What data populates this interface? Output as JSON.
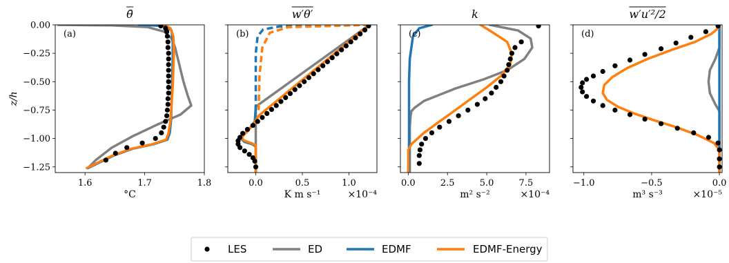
{
  "chart_data": [
    {
      "type": "line",
      "panel": "(a)",
      "title": "θ̄",
      "title_overline": true,
      "xlabel": "°C",
      "xlim": [
        1.55,
        1.8
      ],
      "ylim": [
        -1.3,
        0.0
      ],
      "xticks": [
        1.6,
        1.7,
        1.8
      ],
      "xticklabels": [
        "1.6",
        "1.7",
        "1.8"
      ],
      "yticks": [
        0.0,
        -0.25,
        -0.5,
        -0.75,
        -1.0,
        -1.25
      ],
      "yticklabels": [
        "0.00",
        "−0.25",
        "−0.50",
        "−0.75",
        "−1.00",
        "−1.25"
      ],
      "ylabel": "z/h",
      "x_multiplier": "",
      "series": [
        {
          "name": "LES",
          "style": "dots",
          "x": [
            1.727,
            1.735,
            1.737,
            1.738,
            1.739,
            1.739,
            1.74,
            1.74,
            1.74,
            1.74,
            1.74,
            1.74,
            1.74,
            1.74,
            1.739,
            1.739,
            1.738,
            1.737,
            1.735,
            1.732,
            1.728,
            1.718,
            1.696,
            1.67,
            1.651,
            1.635
          ],
          "z": [
            -0.01,
            -0.03,
            -0.06,
            -0.1,
            -0.15,
            -0.2,
            -0.25,
            -0.3,
            -0.35,
            -0.4,
            -0.45,
            -0.5,
            -0.55,
            -0.6,
            -0.65,
            -0.7,
            -0.75,
            -0.8,
            -0.85,
            -0.9,
            -0.95,
            -1.0,
            -1.04,
            -1.08,
            -1.13,
            -1.19
          ]
        },
        {
          "name": "ED",
          "style": "line",
          "x": [
            1.555,
            1.645,
            1.705,
            1.733,
            1.745,
            1.751,
            1.758,
            1.765,
            1.772,
            1.778,
            1.76,
            1.72,
            1.68,
            1.645,
            1.618,
            1.605
          ],
          "z": [
            0.0,
            -0.005,
            -0.02,
            -0.06,
            -0.12,
            -0.2,
            -0.35,
            -0.5,
            -0.62,
            -0.71,
            -0.79,
            -0.88,
            -0.98,
            -1.08,
            -1.19,
            -1.26
          ]
        },
        {
          "name": "EDMF",
          "style": "line",
          "x": [
            1.69,
            1.735,
            1.745,
            1.747,
            1.747,
            1.746,
            1.745,
            1.744,
            1.742,
            1.738,
            1.715,
            1.68,
            1.648,
            1.605
          ],
          "z": [
            0.0,
            -0.01,
            -0.05,
            -0.15,
            -0.3,
            -0.5,
            -0.7,
            -0.85,
            -0.95,
            -1.01,
            -1.05,
            -1.09,
            -1.15,
            -1.26
          ]
        },
        {
          "name": "EDMF-Energy",
          "style": "line",
          "x": [
            1.732,
            1.743,
            1.748,
            1.749,
            1.748,
            1.747,
            1.745,
            1.743,
            1.74,
            1.736,
            1.713,
            1.678,
            1.646,
            1.603
          ],
          "z": [
            0.0,
            -0.03,
            -0.1,
            -0.25,
            -0.4,
            -0.55,
            -0.7,
            -0.85,
            -0.95,
            -1.01,
            -1.05,
            -1.09,
            -1.15,
            -1.26
          ]
        }
      ]
    },
    {
      "type": "line",
      "panel": "(b)",
      "title": "w′θ′",
      "title_overline": true,
      "xlabel": "K m s⁻¹",
      "xlim": [
        -0.3,
        1.3
      ],
      "ylim": [
        -1.3,
        0.0
      ],
      "xticks": [
        0.0,
        0.5,
        1.0
      ],
      "xticklabels": [
        "0.0",
        "0.5",
        "1.0"
      ],
      "yticks": [
        0.0,
        -0.25,
        -0.5,
        -0.75,
        -1.0,
        -1.25
      ],
      "yticklabels": [
        "",
        "",
        "",
        "",
        "",
        ""
      ],
      "ylabel": "",
      "x_multiplier": "×10⁻⁴",
      "series": [
        {
          "name": "LES",
          "style": "dots",
          "x": [
            1.21,
            1.17,
            1.12,
            1.07,
            1.02,
            0.97,
            0.92,
            0.87,
            0.82,
            0.77,
            0.72,
            0.67,
            0.62,
            0.57,
            0.52,
            0.47,
            0.42,
            0.37,
            0.32,
            0.27,
            0.22,
            0.17,
            0.12,
            0.07,
            0.02,
            -0.03,
            -0.09,
            -0.14,
            -0.17,
            -0.19,
            -0.19,
            -0.17,
            -0.12,
            -0.07,
            -0.03,
            -0.01,
            0.0
          ],
          "z": [
            -0.01,
            -0.045,
            -0.08,
            -0.115,
            -0.15,
            -0.185,
            -0.22,
            -0.255,
            -0.29,
            -0.325,
            -0.36,
            -0.395,
            -0.43,
            -0.465,
            -0.5,
            -0.535,
            -0.57,
            -0.605,
            -0.64,
            -0.675,
            -0.71,
            -0.745,
            -0.78,
            -0.815,
            -0.85,
            -0.885,
            -0.92,
            -0.955,
            -0.99,
            -1.02,
            -1.05,
            -1.08,
            -1.11,
            -1.14,
            -1.17,
            -1.2,
            -1.25
          ]
        },
        {
          "name": "ED",
          "style": "line",
          "x": [
            1.22,
            0.0,
            0.0,
            0.0
          ],
          "z": [
            0.0,
            -0.72,
            -0.95,
            -1.3
          ]
        },
        {
          "name": "EDMF",
          "style": "line",
          "x": [
            0.0,
            -0.01,
            -0.08,
            -0.14,
            -0.16,
            -0.12,
            -0.04,
            0.0,
            0.0
          ],
          "z": [
            -0.72,
            -0.85,
            -0.93,
            -0.97,
            -1.0,
            -1.03,
            -1.05,
            -1.07,
            -1.3
          ]
        },
        {
          "name": "EDMF-Energy",
          "style": "line",
          "x": [
            1.22,
            0.03,
            -0.02,
            -0.08,
            -0.13,
            -0.15,
            -0.12,
            -0.05,
            0.0,
            0.0
          ],
          "z": [
            0.0,
            -0.8,
            -0.87,
            -0.93,
            -0.97,
            -1.0,
            -1.02,
            -1.04,
            -1.06,
            -1.3
          ]
        },
        {
          "name": "EDMF (dashed)",
          "style": "dashed",
          "x": [
            1.22,
            0.25,
            0.08,
            0.02,
            0.0,
            0.0
          ],
          "z": [
            0.0,
            -0.015,
            -0.04,
            -0.1,
            -0.25,
            -0.75
          ]
        },
        {
          "name": "EDMF-Energy (dashed)",
          "style": "dashed",
          "x": [
            1.22,
            0.35,
            0.15,
            0.07,
            0.04,
            0.03
          ],
          "z": [
            0.0,
            -0.02,
            -0.07,
            -0.2,
            -0.45,
            -0.75
          ]
        }
      ]
    },
    {
      "type": "line",
      "panel": "(c)",
      "title": "k",
      "title_overline": false,
      "xlabel": "m² s⁻²",
      "xlim": [
        -0.5,
        9.0
      ],
      "ylim": [
        -1.3,
        0.0
      ],
      "xticks": [
        0.0,
        2.5,
        5.0,
        7.5
      ],
      "xticklabels": [
        "0.0",
        "2.5",
        "5.0",
        "7.5"
      ],
      "yticks": [
        0.0,
        -0.25,
        -0.5,
        -0.75,
        -1.0,
        -1.25
      ],
      "yticklabels": [
        "",
        "",
        "",
        "",
        "",
        ""
      ],
      "ylabel": "",
      "x_multiplier": "×10⁻⁴",
      "series": [
        {
          "name": "LES",
          "style": "dots",
          "x": [
            8.3,
            7.2,
            6.8,
            6.6,
            6.5,
            6.4,
            6.3,
            6.1,
            5.9,
            5.6,
            5.3,
            4.9,
            4.4,
            3.8,
            3.2,
            2.6,
            2.0,
            1.5,
            1.1,
            0.85,
            0.75,
            0.7,
            0.7
          ],
          "z": [
            -0.01,
            -0.15,
            -0.2,
            -0.25,
            -0.3,
            -0.35,
            -0.4,
            -0.45,
            -0.5,
            -0.55,
            -0.6,
            -0.65,
            -0.7,
            -0.75,
            -0.8,
            -0.85,
            -0.9,
            -0.95,
            -1.0,
            -1.05,
            -1.1,
            -1.15,
            -1.22
          ]
        },
        {
          "name": "ED",
          "style": "line",
          "x": [
            5.2,
            7.0,
            7.8,
            7.9,
            7.4,
            6.3,
            4.8,
            3.0,
            1.0,
            0.4,
            0.2,
            0.15,
            0.1,
            0.1
          ],
          "z": [
            0.0,
            -0.05,
            -0.12,
            -0.2,
            -0.3,
            -0.4,
            -0.48,
            -0.56,
            -0.67,
            -0.73,
            -0.76,
            -0.8,
            -0.9,
            -1.3
          ]
        },
        {
          "name": "EDMF",
          "style": "line",
          "x": [
            1.5,
            0.7,
            0.3,
            0.1,
            0.05,
            0.05,
            0.05
          ],
          "z": [
            0.0,
            -0.03,
            -0.1,
            -0.3,
            -0.5,
            -0.9,
            -1.3
          ]
        },
        {
          "name": "EDMF-Energy",
          "style": "line",
          "x": [
            4.6,
            5.3,
            6.3,
            6.6,
            6.5,
            5.9,
            5.0,
            4.0,
            3.0,
            2.0,
            1.0,
            0.2,
            0.0,
            0.0
          ],
          "z": [
            0.0,
            -0.06,
            -0.15,
            -0.25,
            -0.35,
            -0.45,
            -0.55,
            -0.65,
            -0.75,
            -0.85,
            -0.95,
            -1.05,
            -1.1,
            -1.3
          ]
        }
      ]
    },
    {
      "type": "line",
      "panel": "(d)",
      "title": "w′u′²/2",
      "title_overline": true,
      "xlabel": "m³ s⁻³",
      "xlim": [
        -1.08,
        0.02
      ],
      "ylim": [
        -1.3,
        0.0
      ],
      "xticks": [
        -1.0,
        -0.5,
        0.0
      ],
      "xticklabels": [
        "−1.0",
        "−0.5",
        "0.0"
      ],
      "yticks": [
        0.0,
        -0.25,
        -0.5,
        -0.75,
        -1.0,
        -1.25
      ],
      "yticklabels": [
        "",
        "",
        "",
        "",
        "",
        ""
      ],
      "ylabel": "",
      "x_multiplier": "×10⁻⁵",
      "series": [
        {
          "name": "LES",
          "style": "dots",
          "x": [
            -0.01,
            -0.1,
            -0.21,
            -0.32,
            -0.43,
            -0.55,
            -0.66,
            -0.77,
            -0.86,
            -0.93,
            -0.98,
            -1.01,
            -1.02,
            -1.01,
            -0.98,
            -0.93,
            -0.86,
            -0.77,
            -0.66,
            -0.55,
            -0.43,
            -0.31,
            -0.19,
            -0.08,
            -0.01,
            0.0,
            0.0,
            0.0
          ],
          "z": [
            -0.01,
            -0.06,
            -0.11,
            -0.16,
            -0.21,
            -0.26,
            -0.31,
            -0.36,
            -0.41,
            -0.45,
            -0.48,
            -0.51,
            -0.55,
            -0.59,
            -0.63,
            -0.67,
            -0.71,
            -0.75,
            -0.79,
            -0.83,
            -0.87,
            -0.91,
            -0.95,
            -0.99,
            -1.04,
            -1.1,
            -1.18,
            -1.25
          ]
        },
        {
          "name": "ED",
          "style": "line",
          "x": [
            0.0,
            0.0,
            -0.03,
            -0.07,
            -0.08,
            -0.07,
            -0.03,
            0.0,
            0.0,
            0.0
          ],
          "z": [
            0.0,
            -0.2,
            -0.3,
            -0.4,
            -0.5,
            -0.6,
            -0.7,
            -0.76,
            -0.9,
            -1.3
          ]
        },
        {
          "name": "EDMF",
          "style": "line",
          "x": [
            0.0,
            0.0,
            0.0
          ],
          "z": [
            0.0,
            -0.65,
            -1.3
          ]
        },
        {
          "name": "EDMF-Energy",
          "style": "line",
          "x": [
            -0.01,
            -0.06,
            -0.18,
            -0.35,
            -0.53,
            -0.68,
            -0.79,
            -0.85,
            -0.86,
            -0.83,
            -0.75,
            -0.63,
            -0.48,
            -0.32,
            -0.16,
            -0.04,
            0.0,
            0.0
          ],
          "z": [
            -0.03,
            -0.08,
            -0.15,
            -0.22,
            -0.3,
            -0.38,
            -0.46,
            -0.53,
            -0.6,
            -0.66,
            -0.72,
            -0.78,
            -0.84,
            -0.9,
            -0.97,
            -1.04,
            -1.1,
            -1.3
          ]
        }
      ]
    }
  ],
  "legend": {
    "placement": "bottom-center",
    "entries": [
      {
        "label": "LES",
        "style": "dot",
        "color": "#000000"
      },
      {
        "label": "ED",
        "style": "line",
        "color": "#808080"
      },
      {
        "label": "EDMF",
        "style": "line",
        "color": "#1f77b4"
      },
      {
        "label": "EDMF-Energy",
        "style": "line",
        "color": "#ff7f0e"
      }
    ]
  },
  "colors": {
    "LES": "#000000",
    "ED": "#808080",
    "EDMF": "#1f77b4",
    "EDMF-Energy": "#ff7f0e",
    "EDMF (dashed)": "#1f77b4",
    "EDMF-Energy (dashed)": "#ff7f0e"
  }
}
